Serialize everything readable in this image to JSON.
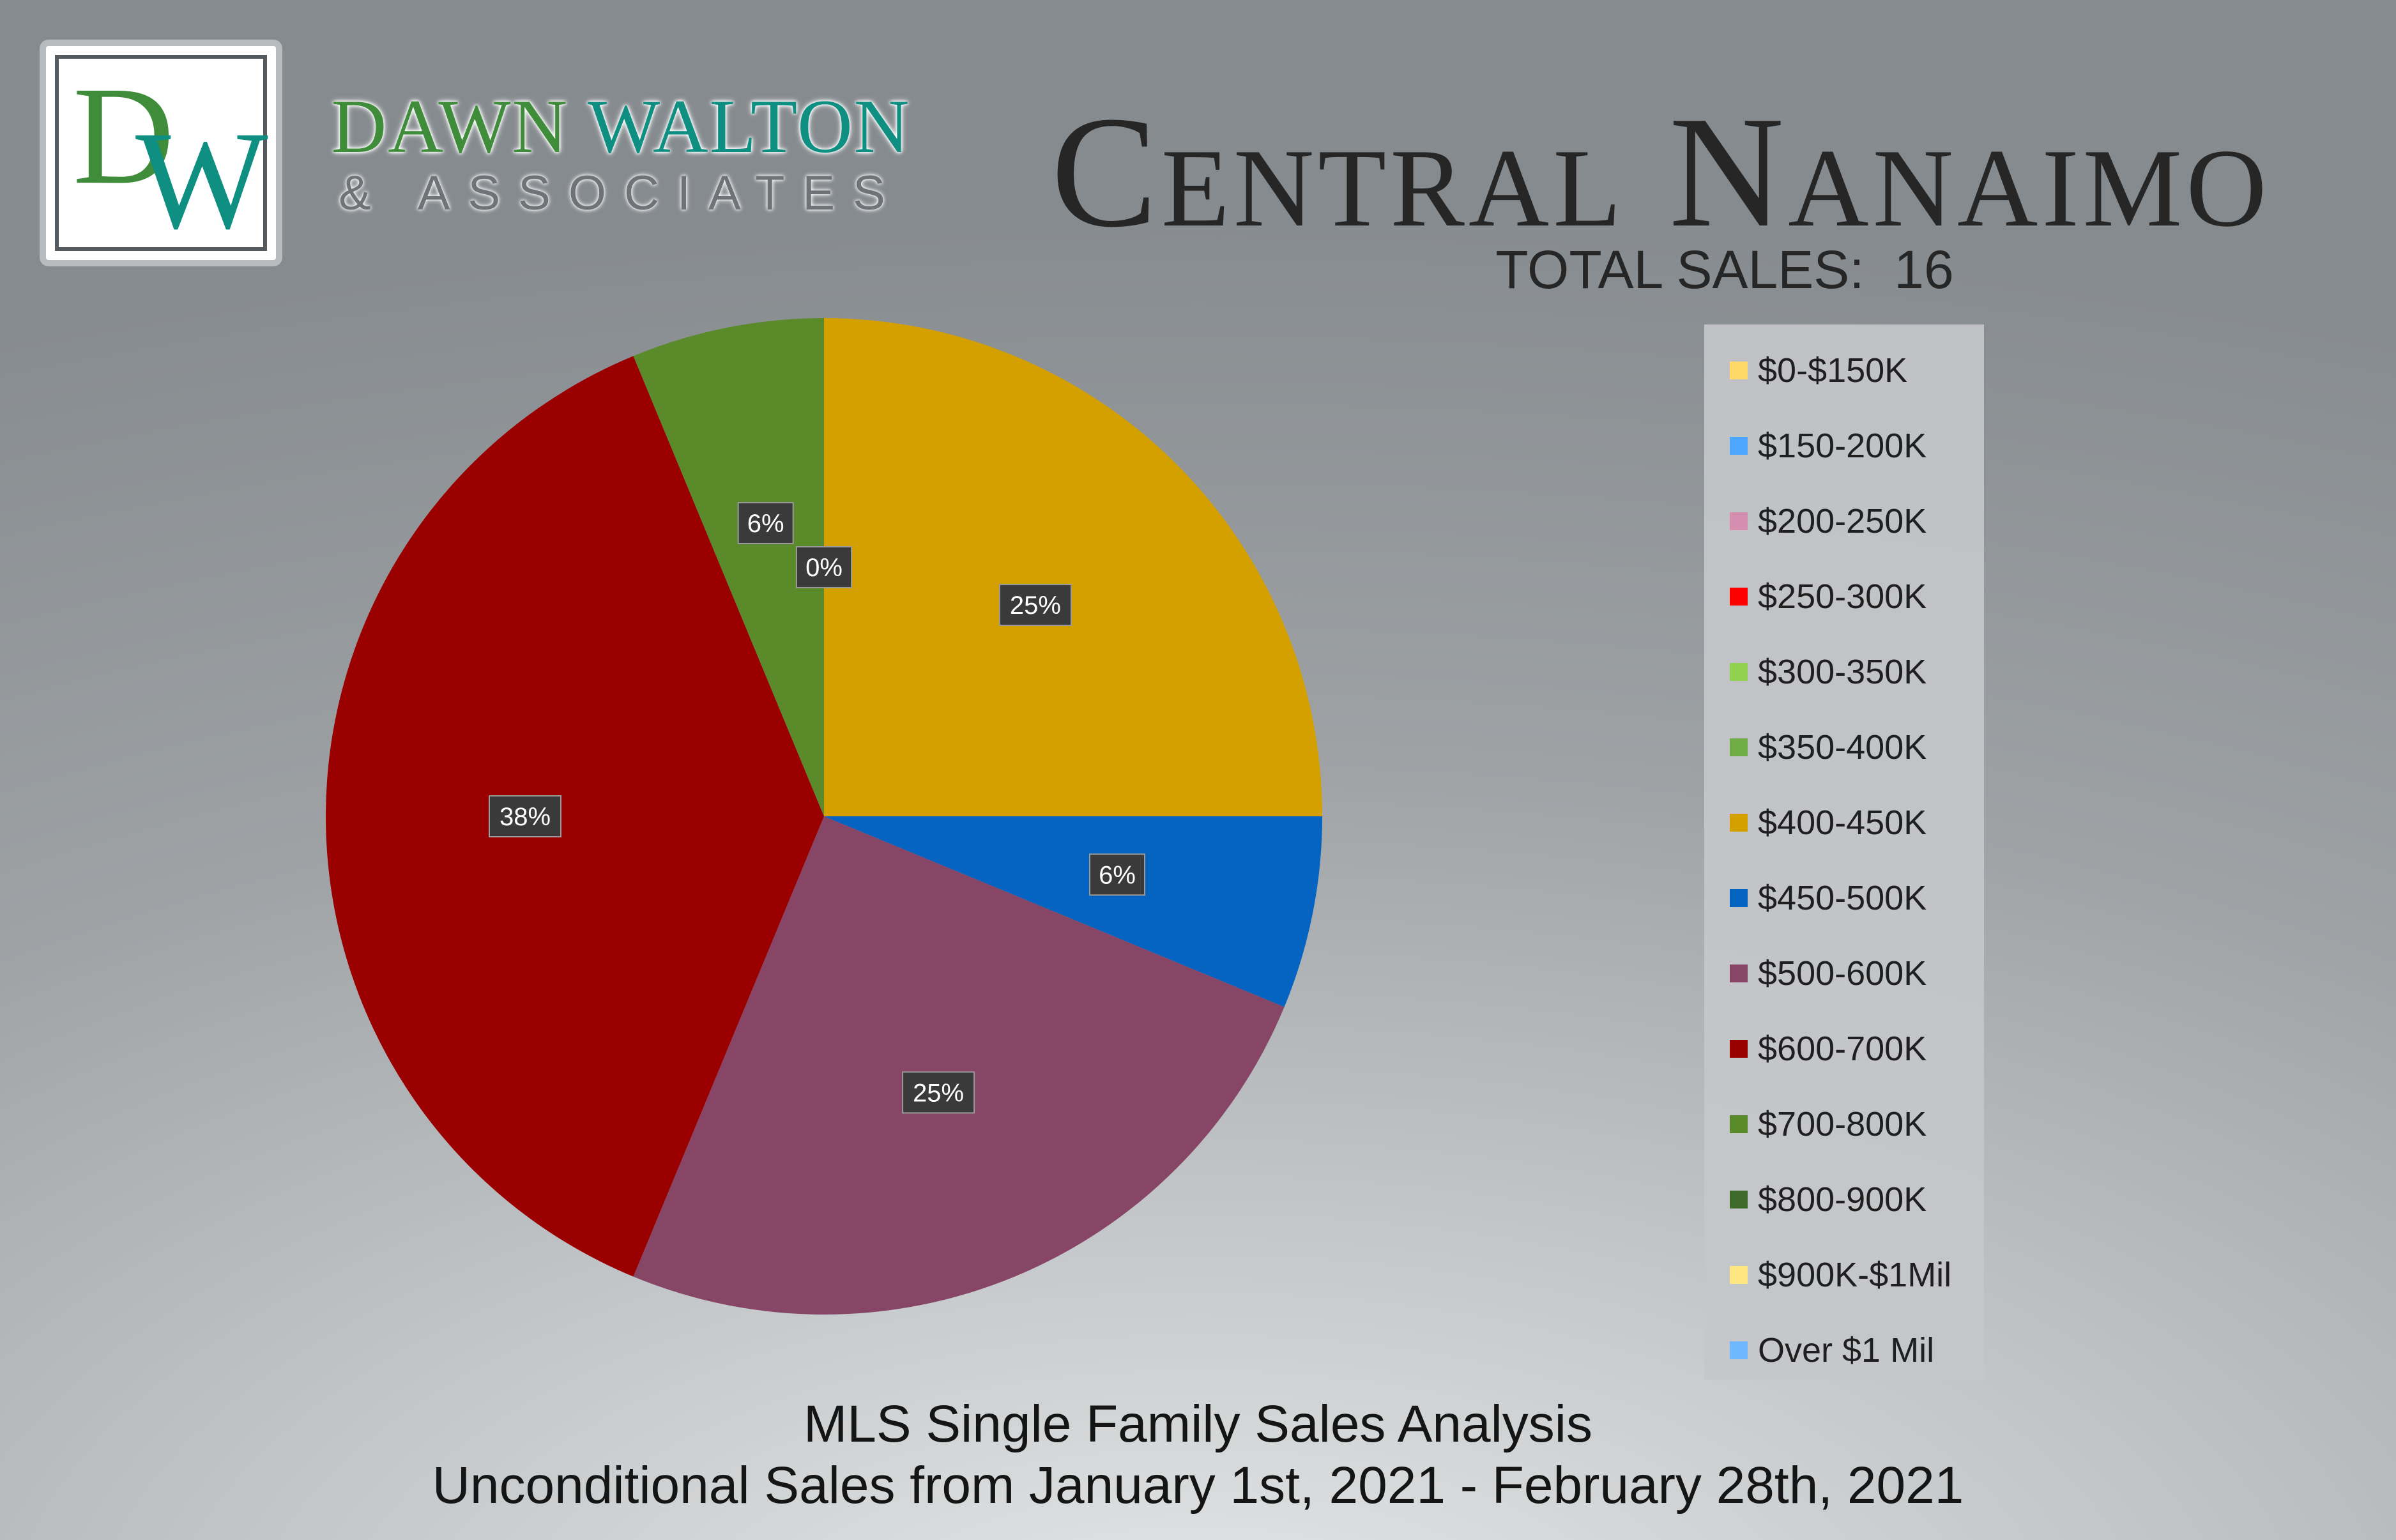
{
  "brand": {
    "logo_letter_d": "D",
    "logo_letter_w": "W",
    "name_part1": "DAWN",
    "name_part2": "WALTON",
    "tagline": "& ASSOCIATES",
    "green": "#3f8d3b",
    "teal": "#0f8f82"
  },
  "title": "Central Nanaimo",
  "total_sales": {
    "label": "TOTAL SALES:",
    "value": "16"
  },
  "footer": {
    "line1": "MLS Single Family Sales Analysis",
    "line2": "Unconditional Sales from January 1st, 2021 - February 28th, 2021"
  },
  "chart_data": {
    "type": "pie",
    "title": "",
    "start_angle": "12 o'clock",
    "direction": "clockwise",
    "legend_placement": "right",
    "slices": [
      {
        "label": "$0-$150K",
        "value": 0,
        "percent_label": "",
        "color": "#ffd966"
      },
      {
        "label": "$150-200K",
        "value": 0,
        "percent_label": "",
        "color": "#4da6ff"
      },
      {
        "label": "$200-250K",
        "value": 0,
        "percent_label": "",
        "color": "#d48fb0"
      },
      {
        "label": "$250-300K",
        "value": 0,
        "percent_label": "",
        "color": "#ff0000"
      },
      {
        "label": "$300-350K",
        "value": 0,
        "percent_label": "",
        "color": "#92d050"
      },
      {
        "label": "$350-400K",
        "value": 0,
        "percent_label": "",
        "color": "#70ad47"
      },
      {
        "label": "$400-450K",
        "value": 25,
        "percent_label": "25%",
        "color": "#d4a000"
      },
      {
        "label": "$450-500K",
        "value": 6.25,
        "percent_label": "6%",
        "color": "#0563c1"
      },
      {
        "label": "$500-600K",
        "value": 25,
        "percent_label": "25%",
        "color": "#874666"
      },
      {
        "label": "$600-700K",
        "value": 37.5,
        "percent_label": "38%",
        "color": "#9b0000"
      },
      {
        "label": "$700-800K",
        "value": 6.25,
        "percent_label": "6%",
        "color": "#5b8a2a"
      },
      {
        "label": "$800-900K",
        "value": 0,
        "percent_label": "",
        "color": "#3e6b2a"
      },
      {
        "label": "$900K-$1Mil",
        "value": 0,
        "percent_label": "0%",
        "color": "#ffe680"
      },
      {
        "label": "Over $1 Mil",
        "value": 0,
        "percent_label": "",
        "color": "#6fb7ff"
      }
    ]
  }
}
